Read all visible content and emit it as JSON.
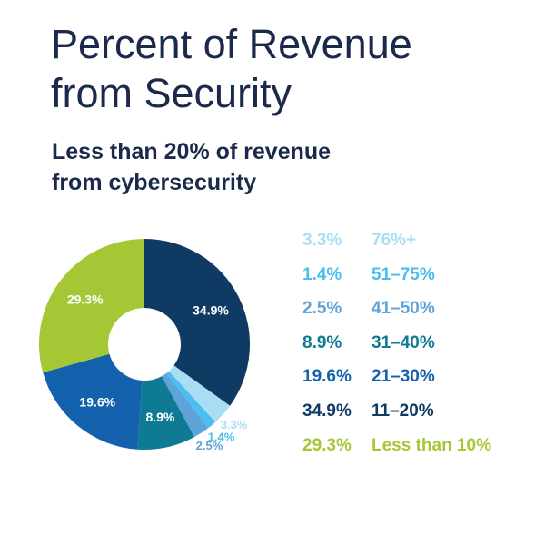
{
  "header": {
    "title_line1": "Percent of Revenue",
    "title_line2": "from Security",
    "subtitle_line1": "Less than 20% of revenue",
    "subtitle_line2": "from cybersecurity"
  },
  "colors": {
    "title": "#1b2a4a",
    "subtitle": "#1b2a4a"
  },
  "chart_data": {
    "type": "pie",
    "donut": true,
    "title": "Percent of Revenue from Security",
    "subtitle": "Less than 20% of revenue from cybersecurity",
    "slices": [
      {
        "label": "11–20%",
        "value": 34.9,
        "value_label": "34.9%",
        "color": "#0f3a63",
        "data_label_inside": true,
        "data_label_color": "#ffffff"
      },
      {
        "label": "76%+",
        "value": 3.3,
        "value_label": "3.3%",
        "color": "#a9def2",
        "data_label_inside": false,
        "data_label_color": "#a9def2"
      },
      {
        "label": "51–75%",
        "value": 1.4,
        "value_label": "1.4%",
        "color": "#4cbdf0",
        "data_label_inside": false,
        "data_label_color": "#4cbdf0"
      },
      {
        "label": "41–50%",
        "value": 2.5,
        "value_label": "2.5%",
        "color": "#5ea4d8",
        "data_label_inside": false,
        "data_label_color": "#5ea4d8"
      },
      {
        "label": "31–40%",
        "value": 8.9,
        "value_label": "8.9%",
        "color": "#0e7a94",
        "data_label_inside": true,
        "data_label_color": "#ffffff"
      },
      {
        "label": "21–30%",
        "value": 19.6,
        "value_label": "19.6%",
        "color": "#1462ad",
        "data_label_inside": true,
        "data_label_color": "#ffffff"
      },
      {
        "label": "Less than 10%",
        "value": 29.3,
        "value_label": "29.3%",
        "color": "#a6c735",
        "data_label_inside": true,
        "data_label_color": "#ffffff"
      }
    ],
    "legend": [
      {
        "value": "3.3%",
        "label": "76%+",
        "color": "#a9def2"
      },
      {
        "value": "1.4%",
        "label": "51–75%",
        "color": "#4cbdf0"
      },
      {
        "value": "2.5%",
        "label": "41–50%",
        "color": "#5ea4d8"
      },
      {
        "value": "8.9%",
        "label": "31–40%",
        "color": "#0e7a94"
      },
      {
        "value": "19.6%",
        "label": "21–30%",
        "color": "#1462ad"
      },
      {
        "value": "34.9%",
        "label": "11–20%",
        "color": "#0f3a63"
      },
      {
        "value": "29.3%",
        "label": "Less than 10%",
        "color": "#a6c735"
      }
    ],
    "legend_position": "right"
  }
}
